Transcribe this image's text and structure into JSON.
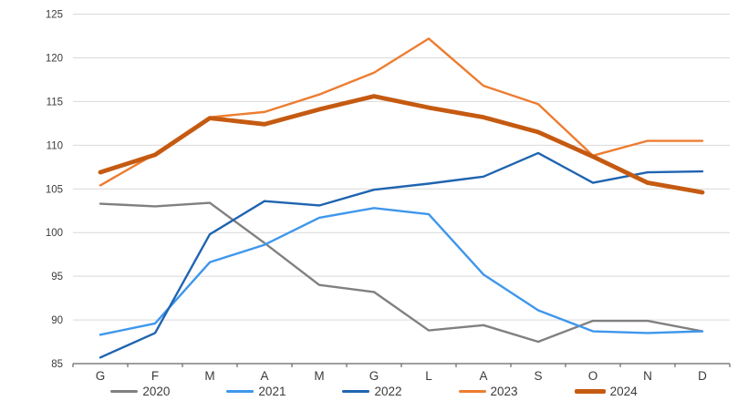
{
  "chart_data": {
    "type": "line",
    "title": "",
    "xlabel": "",
    "ylabel": "",
    "categories": [
      "G",
      "F",
      "M",
      "A",
      "M",
      "G",
      "L",
      "A",
      "S",
      "O",
      "N",
      "D"
    ],
    "y_ticks": [
      125,
      120,
      115,
      110,
      105,
      100,
      95,
      90,
      85
    ],
    "ylim": [
      85,
      125
    ],
    "grid": "horizontal",
    "legend_position": "bottom",
    "series": [
      {
        "name": "2020",
        "color": "#808080",
        "width": 2.4,
        "values": [
          103.3,
          103.0,
          103.4,
          98.8,
          94.0,
          93.2,
          88.8,
          89.4,
          87.5,
          89.9,
          89.9,
          88.7
        ]
      },
      {
        "name": "2021",
        "color": "#3E97EC",
        "width": 2.4,
        "values": [
          88.3,
          89.6,
          96.6,
          98.6,
          101.7,
          102.8,
          102.1,
          95.2,
          91.1,
          88.7,
          88.5,
          88.7
        ]
      },
      {
        "name": "2022",
        "color": "#1F64B0",
        "width": 2.4,
        "values": [
          85.7,
          88.5,
          99.8,
          103.6,
          103.1,
          104.9,
          105.6,
          106.4,
          109.1,
          105.7,
          106.9,
          107.0
        ]
      },
      {
        "name": "2023",
        "color": "#ED7D31",
        "width": 2.4,
        "values": [
          105.4,
          109.0,
          113.2,
          113.8,
          115.8,
          118.3,
          122.2,
          116.8,
          114.7,
          108.8,
          110.5,
          110.5
        ]
      },
      {
        "name": "2024",
        "color": "#C55A11",
        "width": 4.8,
        "values": [
          106.9,
          108.9,
          113.1,
          112.4,
          114.1,
          115.6,
          114.3,
          113.2,
          111.5,
          108.7,
          105.7,
          104.6
        ]
      }
    ],
    "colors": {
      "grid": "#D9D9D9",
      "axis": "#666666",
      "labels": "#3B3B3B"
    }
  }
}
